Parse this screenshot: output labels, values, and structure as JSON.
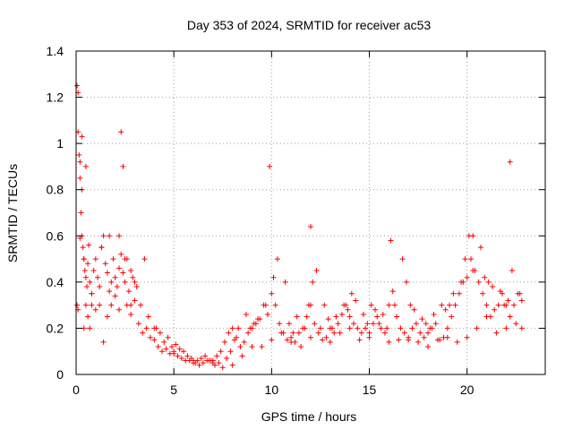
{
  "chart_data": {
    "type": "scatter",
    "title": "Day 353 of 2024, SRMTID for receiver ac53",
    "xlabel": "GPS time / hours",
    "ylabel": "SRMTID / TECUs",
    "xlim": [
      0,
      24
    ],
    "ylim": [
      0,
      1.4
    ],
    "xticks": [
      0,
      5,
      10,
      15,
      20
    ],
    "xtick_labels": [
      "0",
      "5",
      "10",
      "15",
      "20"
    ],
    "yticks": [
      0,
      0.2,
      0.4,
      0.6,
      0.8,
      1.0,
      1.2,
      1.4
    ],
    "ytick_labels": [
      "0",
      "0.2",
      "0.4",
      "0.6",
      "0.8",
      "1",
      "1.2",
      "1.4"
    ],
    "grid": true,
    "marker": "plus",
    "color": "#ff0000",
    "series": [
      {
        "name": "SRMTID",
        "x": [
          0.05,
          0.1,
          0.15,
          0.2,
          0.25,
          0.3,
          0.35,
          0.4,
          0.45,
          0.5,
          0.55,
          0.6,
          0.65,
          0.7,
          0.8,
          0.9,
          1.0,
          1.1,
          1.2,
          1.3,
          1.4,
          1.5,
          1.6,
          1.7,
          1.8,
          1.9,
          2.0,
          2.1,
          2.2,
          2.3,
          2.4,
          2.5,
          2.6,
          2.7,
          2.8,
          2.9,
          3.0,
          3.2,
          3.4,
          3.6,
          3.8,
          4.0,
          4.2,
          4.4,
          4.6,
          4.8,
          5.0,
          5.2,
          5.4,
          5.6,
          5.8,
          6.0,
          6.2,
          6.4,
          6.6,
          6.8,
          7.0,
          7.2,
          7.4,
          7.6,
          7.8,
          8.0,
          8.2,
          8.4,
          8.6,
          8.8,
          9.0,
          9.2,
          9.4,
          9.6,
          9.8,
          10.0,
          10.2,
          10.4,
          10.6,
          10.8,
          11.0,
          11.2,
          11.4,
          11.6,
          11.8,
          12.0,
          12.2,
          12.4,
          12.6,
          12.8,
          13.0,
          13.2,
          13.4,
          13.6,
          13.8,
          14.0,
          14.2,
          14.4,
          14.6,
          14.8,
          15.0,
          15.2,
          15.4,
          15.6,
          15.8,
          16.0,
          16.2,
          16.4,
          16.6,
          16.8,
          17.0,
          17.2,
          17.4,
          17.6,
          17.8,
          18.0,
          18.2,
          18.4,
          18.6,
          18.8,
          19.0,
          19.2,
          19.4,
          19.6,
          19.8,
          20.0,
          20.2,
          20.4,
          20.6,
          20.8,
          21.0,
          21.2,
          21.4,
          21.6,
          21.8,
          22.0,
          22.2,
          22.4,
          22.6,
          22.8,
          0.05,
          0.1,
          0.2,
          0.3,
          0.4,
          0.5,
          0.6,
          0.7,
          0.8,
          1.0,
          1.2,
          1.4,
          1.6,
          1.8,
          2.0,
          2.2,
          2.4,
          2.6,
          2.8,
          3.0,
          3.5,
          4.0,
          4.5,
          5.0,
          5.5,
          6.0,
          6.5,
          7.0,
          7.5,
          8.0,
          8.5,
          9.0,
          9.5,
          10.0,
          10.5,
          11.0,
          11.5,
          12.0,
          12.5,
          13.0,
          13.5,
          14.0,
          14.5,
          15.0,
          15.5,
          16.0,
          16.5,
          17.0,
          17.5,
          18.0,
          18.5,
          19.0,
          19.5,
          20.0,
          20.5,
          21.0,
          21.5,
          22.0,
          22.5,
          22.8,
          0.1,
          0.3,
          0.5,
          2.2,
          2.3,
          20.3,
          22.2,
          9.9,
          12.0,
          16.1,
          0.2,
          0.4,
          0.8,
          1.3,
          1.7,
          2.5,
          2.8,
          3.1,
          3.3,
          3.7,
          4.1,
          4.3,
          4.7,
          4.9,
          5.1,
          5.3,
          5.7,
          5.9,
          6.1,
          6.3,
          6.7,
          6.9,
          7.1,
          7.3,
          7.7,
          7.9,
          8.1,
          8.3,
          8.7,
          8.9,
          9.1,
          9.3,
          9.7,
          10.1,
          10.3,
          10.7,
          10.9,
          11.1,
          11.3,
          11.7,
          11.9,
          12.1,
          12.3,
          12.7,
          12.9,
          13.1,
          13.3,
          13.7,
          13.9,
          14.1,
          14.3,
          14.7,
          14.9,
          15.1,
          15.3,
          15.7,
          15.9,
          16.3,
          16.7,
          16.9,
          17.1,
          17.3,
          17.7,
          17.9,
          18.1,
          18.3,
          18.7,
          18.9,
          19.1,
          19.3,
          19.7,
          19.9,
          20.1,
          20.3,
          20.7,
          20.9,
          21.1,
          21.3,
          21.7,
          21.9,
          22.1,
          22.3,
          22.7
        ],
        "y": [
          1.25,
          1.05,
          0.95,
          0.85,
          0.7,
          0.6,
          0.55,
          0.5,
          0.45,
          0.42,
          0.38,
          0.48,
          0.56,
          0.4,
          0.35,
          0.45,
          0.5,
          0.42,
          0.38,
          0.55,
          0.6,
          0.48,
          0.44,
          0.36,
          0.4,
          0.5,
          0.42,
          0.38,
          0.46,
          0.52,
          0.44,
          0.4,
          0.5,
          0.36,
          0.3,
          0.42,
          0.32,
          0.22,
          0.18,
          0.2,
          0.16,
          0.15,
          0.12,
          0.1,
          0.11,
          0.09,
          0.1,
          0.08,
          0.07,
          0.06,
          0.06,
          0.05,
          0.06,
          0.07,
          0.08,
          0.06,
          0.05,
          0.08,
          0.1,
          0.14,
          0.18,
          0.2,
          0.16,
          0.12,
          0.14,
          0.18,
          0.2,
          0.22,
          0.24,
          0.3,
          0.26,
          0.35,
          0.3,
          0.22,
          0.18,
          0.15,
          0.16,
          0.14,
          0.18,
          0.2,
          0.25,
          0.3,
          0.22,
          0.18,
          0.15,
          0.16,
          0.2,
          0.18,
          0.22,
          0.26,
          0.3,
          0.25,
          0.22,
          0.2,
          0.18,
          0.2,
          0.16,
          0.22,
          0.25,
          0.2,
          0.18,
          0.3,
          0.36,
          0.25,
          0.2,
          0.18,
          0.15,
          0.2,
          0.22,
          0.18,
          0.16,
          0.18,
          0.2,
          0.22,
          0.15,
          0.16,
          0.2,
          0.25,
          0.3,
          0.35,
          0.4,
          0.42,
          0.5,
          0.45,
          0.4,
          0.35,
          0.3,
          0.25,
          0.28,
          0.3,
          0.35,
          0.3,
          0.25,
          0.3,
          0.35,
          0.32,
          0.3,
          1.22,
          0.92,
          0.8,
          0.5,
          0.3,
          0.25,
          0.2,
          0.35,
          0.28,
          0.3,
          0.14,
          0.25,
          0.3,
          0.34,
          0.28,
          0.9,
          0.3,
          0.26,
          0.4,
          0.5,
          0.2,
          0.14,
          0.09,
          0.1,
          0.06,
          0.05,
          0.06,
          0.03,
          0.04,
          0.08,
          0.12,
          0.12,
          0.15,
          0.18,
          0.14,
          0.12,
          0.16,
          0.2,
          0.14,
          0.18,
          0.2,
          0.15,
          0.18,
          0.22,
          0.14,
          0.15,
          0.16,
          0.14,
          0.12,
          0.15,
          0.16,
          0.14,
          0.16,
          0.2,
          0.25,
          0.18,
          0.2,
          0.22,
          0.2,
          0.28,
          1.03,
          0.9,
          0.6,
          1.05,
          0.6,
          0.92,
          0.9,
          0.64,
          0.58,
          0.59,
          0.2,
          0.3,
          0.55,
          0.6,
          0.5,
          0.45,
          0.38,
          0.3,
          0.25,
          0.2,
          0.18,
          0.16,
          0.12,
          0.13,
          0.11,
          0.08,
          0.07,
          0.05,
          0.04,
          0.06,
          0.06,
          0.04,
          0.05,
          0.07,
          0.1,
          0.15,
          0.2,
          0.26,
          0.2,
          0.22,
          0.24,
          0.3,
          0.42,
          0.5,
          0.4,
          0.22,
          0.18,
          0.25,
          0.2,
          0.3,
          0.4,
          0.45,
          0.3,
          0.24,
          0.2,
          0.25,
          0.3,
          0.28,
          0.35,
          0.32,
          0.26,
          0.22,
          0.3,
          0.28,
          0.26,
          0.2,
          0.3,
          0.5,
          0.4,
          0.3,
          0.28,
          0.24,
          0.22,
          0.2,
          0.26,
          0.3,
          0.28,
          0.3,
          0.35,
          0.4,
          0.5,
          0.6,
          0.45,
          0.55,
          0.42,
          0.4,
          0.38,
          0.36,
          0.3,
          0.32,
          0.45,
          0.35
        ]
      }
    ]
  }
}
